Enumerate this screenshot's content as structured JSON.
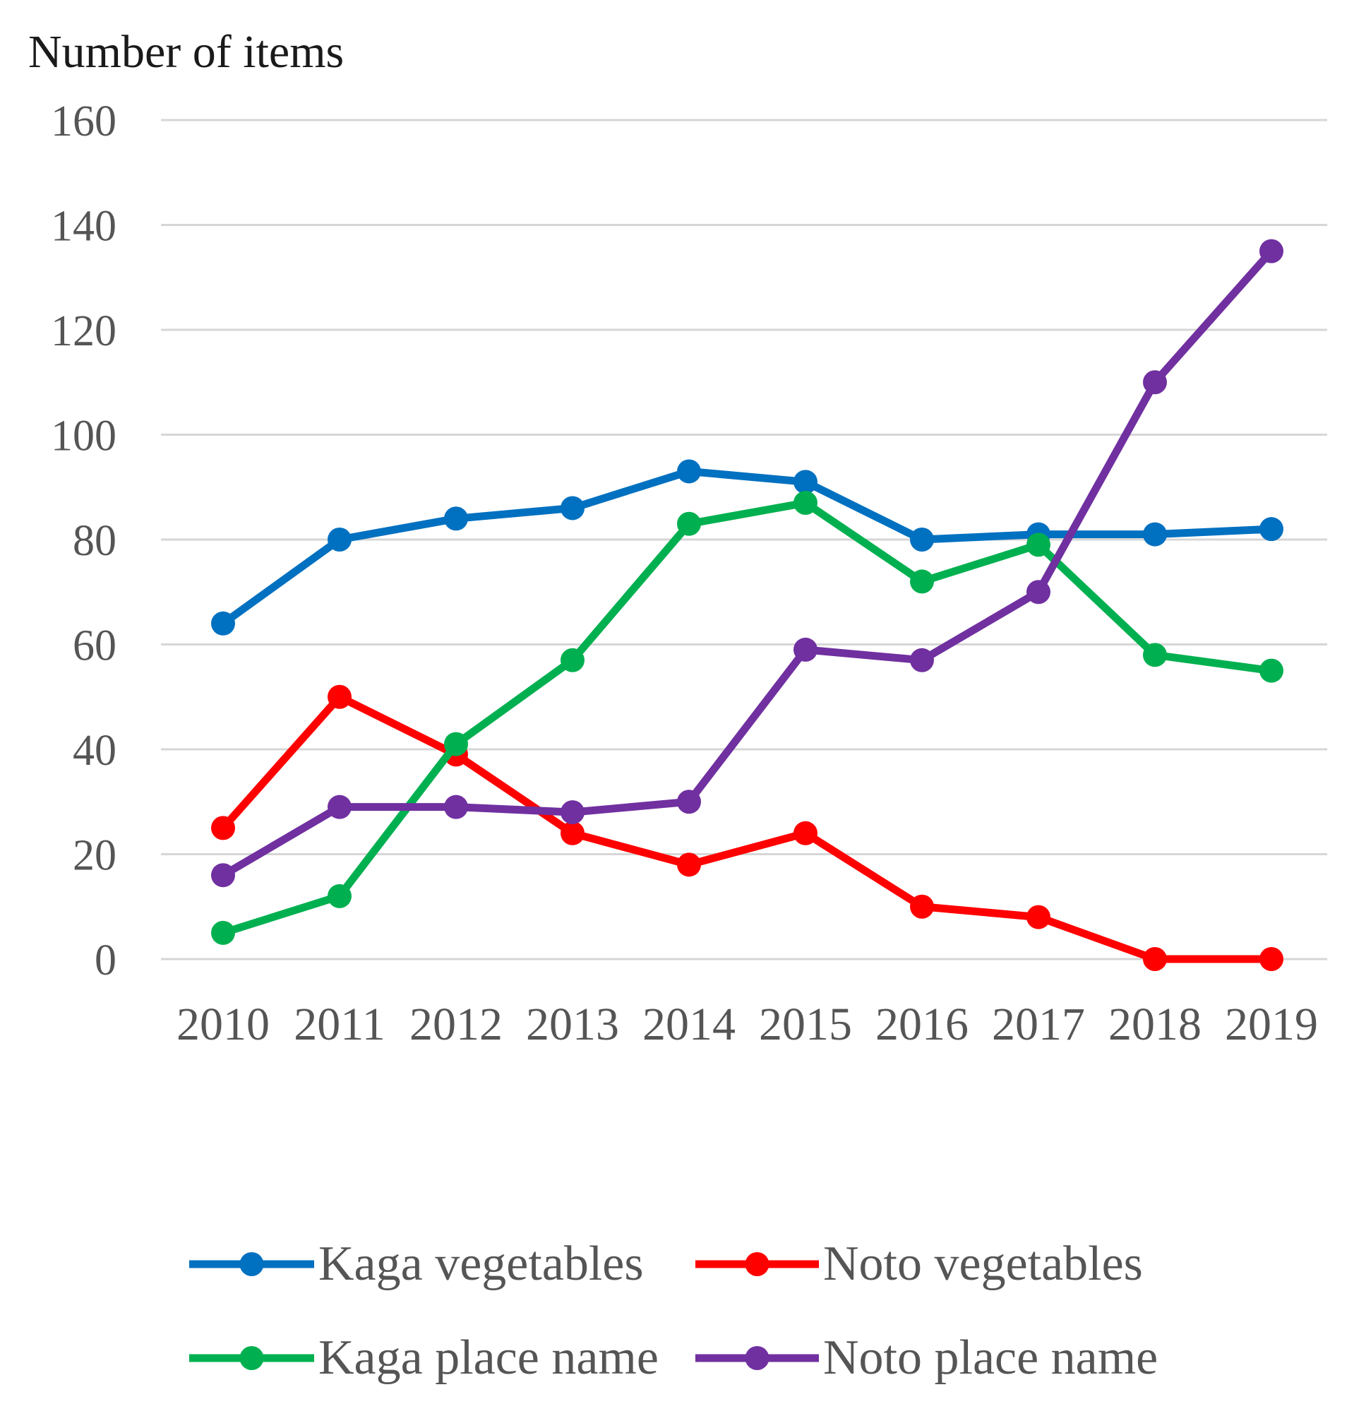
{
  "chart_data": {
    "type": "line",
    "title": "",
    "xlabel": "",
    "ylabel": "Number of items",
    "ylim": [
      0,
      160
    ],
    "yticks": [
      "0",
      "20",
      "40",
      "60",
      "80",
      "100",
      "120",
      "140",
      "160"
    ],
    "grid": true,
    "legend_position": "bottom",
    "categories": [
      "2010",
      "2011",
      "2012",
      "2013",
      "2014",
      "2015",
      "2016",
      "2017",
      "2018",
      "2019"
    ],
    "series": [
      {
        "name": "Kaga vegetables",
        "color": "#0070C0",
        "values": [
          64,
          80,
          84,
          86,
          93,
          91,
          80,
          81,
          81,
          82
        ]
      },
      {
        "name": "Noto vegetables",
        "color": "#FF0000",
        "values": [
          25,
          50,
          39,
          24,
          18,
          24,
          10,
          8,
          0,
          0
        ]
      },
      {
        "name": "Kaga place name",
        "color": "#00B050",
        "values": [
          5,
          12,
          41,
          57,
          83,
          87,
          72,
          79,
          58,
          55
        ]
      },
      {
        "name": "Noto place name",
        "color": "#7030A0",
        "values": [
          16,
          29,
          29,
          28,
          30,
          59,
          57,
          70,
          110,
          135
        ]
      }
    ]
  }
}
